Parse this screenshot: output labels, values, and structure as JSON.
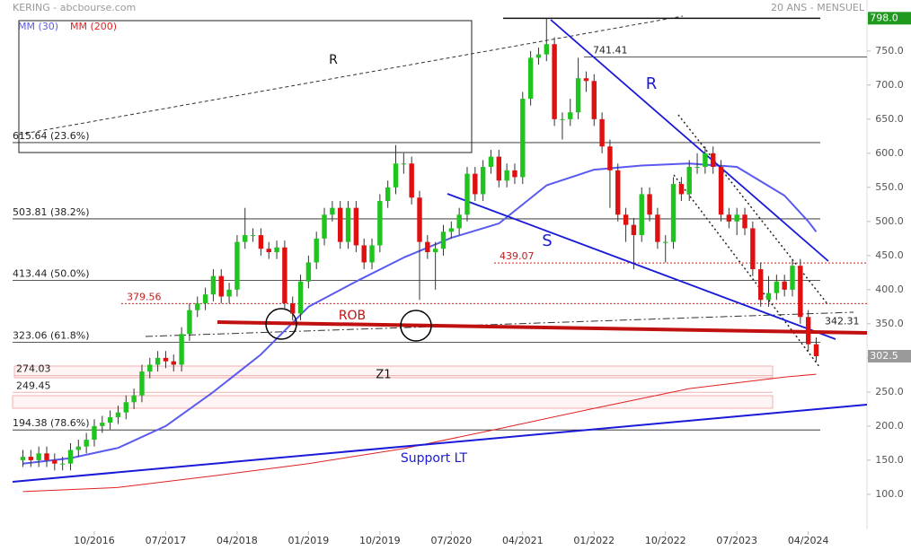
{
  "header": {
    "title": "KERING - abcbourse.com",
    "period": "20 ANS - MENSUEL"
  },
  "chart_data": {
    "type": "candlestick",
    "x": [
      "01/2016",
      "02/2016",
      "03/2016",
      "04/2016",
      "05/2016",
      "06/2016",
      "07/2016",
      "08/2016",
      "09/2016",
      "10/2016",
      "11/2016",
      "12/2016",
      "01/2017",
      "02/2017",
      "03/2017",
      "04/2017",
      "05/2017",
      "06/2017",
      "07/2017",
      "08/2017",
      "09/2017",
      "10/2017",
      "11/2017",
      "12/2017",
      "01/2018",
      "02/2018",
      "03/2018",
      "04/2018",
      "05/2018",
      "06/2018",
      "07/2018",
      "08/2018",
      "09/2018",
      "10/2018",
      "11/2018",
      "12/2018",
      "01/2019",
      "02/2019",
      "03/2019",
      "04/2019",
      "05/2019",
      "06/2019",
      "07/2019",
      "08/2019",
      "09/2019",
      "10/2019",
      "11/2019",
      "12/2019",
      "01/2020",
      "02/2020",
      "03/2020",
      "04/2020",
      "05/2020",
      "06/2020",
      "07/2020",
      "08/2020",
      "09/2020",
      "10/2020",
      "11/2020",
      "12/2020",
      "01/2021",
      "02/2021",
      "03/2021",
      "04/2021",
      "05/2021",
      "06/2021",
      "07/2021",
      "08/2021",
      "09/2021",
      "10/2021",
      "11/2021",
      "12/2021",
      "01/2022",
      "02/2022",
      "03/2022",
      "04/2022",
      "05/2022",
      "06/2022",
      "07/2022",
      "08/2022",
      "09/2022",
      "10/2022",
      "11/2022",
      "12/2022",
      "01/2023",
      "02/2023",
      "03/2023",
      "04/2023",
      "05/2023",
      "06/2023",
      "07/2023",
      "08/2023",
      "09/2023",
      "10/2023",
      "11/2023",
      "12/2023",
      "01/2024",
      "02/2024",
      "03/2024",
      "04/2024",
      "05/2024"
    ],
    "open": [
      150,
      155,
      150,
      160,
      150,
      145,
      145,
      165,
      170,
      180,
      200,
      205,
      213,
      220,
      235,
      245,
      280,
      290,
      300,
      295,
      290,
      335,
      370,
      380,
      393,
      420,
      390,
      400,
      470,
      480,
      480,
      460,
      455,
      462,
      380,
      365,
      412,
      440,
      475,
      510,
      520,
      470,
      520,
      465,
      440,
      465,
      530,
      550,
      585,
      585,
      535,
      470,
      455,
      460,
      485,
      490,
      510,
      570,
      540,
      580,
      595,
      560,
      575,
      565,
      680,
      740,
      745,
      760,
      650,
      650,
      660,
      710,
      706,
      650,
      610,
      575,
      510,
      495,
      480,
      540,
      510,
      470,
      470,
      555,
      540,
      580,
      580,
      600,
      580,
      510,
      500,
      510,
      490,
      430,
      385,
      395,
      412,
      400,
      435,
      360,
      320
    ],
    "high": [
      165,
      165,
      170,
      170,
      160,
      155,
      175,
      180,
      190,
      210,
      215,
      223,
      230,
      245,
      255,
      290,
      300,
      310,
      310,
      305,
      345,
      380,
      390,
      403,
      430,
      430,
      410,
      480,
      520,
      490,
      490,
      470,
      472,
      472,
      390,
      422,
      450,
      485,
      520,
      530,
      530,
      530,
      530,
      475,
      475,
      540,
      560,
      612,
      600,
      595,
      545,
      480,
      470,
      495,
      500,
      520,
      580,
      580,
      590,
      605,
      605,
      585,
      585,
      690,
      750,
      755,
      798,
      770,
      660,
      680,
      740,
      720,
      716,
      660,
      620,
      585,
      520,
      505,
      550,
      550,
      520,
      480,
      565,
      565,
      590,
      600,
      610,
      610,
      590,
      520,
      520,
      520,
      500,
      440,
      420,
      422,
      422,
      445,
      445,
      370,
      330
    ],
    "low": [
      140,
      140,
      140,
      140,
      135,
      135,
      135,
      155,
      160,
      170,
      190,
      195,
      203,
      210,
      225,
      235,
      270,
      280,
      285,
      280,
      280,
      325,
      360,
      370,
      383,
      380,
      380,
      390,
      460,
      470,
      450,
      445,
      445,
      370,
      355,
      355,
      402,
      430,
      465,
      500,
      460,
      460,
      455,
      430,
      430,
      455,
      520,
      540,
      570,
      525,
      385,
      445,
      400,
      450,
      475,
      480,
      500,
      530,
      530,
      570,
      550,
      550,
      555,
      555,
      670,
      730,
      735,
      640,
      620,
      640,
      650,
      690,
      640,
      600,
      520,
      500,
      470,
      430,
      470,
      500,
      460,
      440,
      460,
      530,
      530,
      570,
      570,
      570,
      500,
      490,
      480,
      480,
      420,
      375,
      375,
      385,
      390,
      390,
      350,
      310,
      295
    ],
    "close": [
      155,
      150,
      160,
      150,
      145,
      145,
      165,
      170,
      180,
      200,
      205,
      213,
      220,
      235,
      245,
      280,
      290,
      300,
      295,
      290,
      335,
      370,
      380,
      393,
      420,
      390,
      400,
      470,
      480,
      480,
      460,
      455,
      462,
      380,
      365,
      412,
      440,
      475,
      510,
      520,
      470,
      520,
      465,
      440,
      465,
      530,
      550,
      585,
      585,
      535,
      470,
      455,
      460,
      485,
      490,
      510,
      570,
      540,
      580,
      595,
      560,
      575,
      565,
      680,
      740,
      745,
      760,
      650,
      650,
      660,
      710,
      706,
      650,
      610,
      575,
      510,
      495,
      480,
      540,
      510,
      470,
      470,
      555,
      540,
      580,
      580,
      600,
      580,
      510,
      500,
      510,
      490,
      430,
      385,
      395,
      412,
      400,
      435,
      360,
      320,
      302.5
    ],
    "up_color": "#1fc41f",
    "down_color": "#e01010",
    "ylim": [
      42,
      805
    ],
    "yticks": [
      {
        "value": 100,
        "label": "100.0"
      },
      {
        "value": 150,
        "label": "150.0"
      },
      {
        "value": 200,
        "label": "200.0"
      },
      {
        "value": 250,
        "label": "250.0"
      },
      {
        "value": 300,
        "label": "300.0"
      },
      {
        "value": 350,
        "label": "350.0"
      },
      {
        "value": 400,
        "label": "400.0"
      },
      {
        "value": 450,
        "label": "450.0"
      },
      {
        "value": 500,
        "label": "500.0"
      },
      {
        "value": 550,
        "label": "550.0"
      },
      {
        "value": 600,
        "label": "600.0"
      },
      {
        "value": 650,
        "label": "650.0"
      },
      {
        "value": 700,
        "label": "700.0"
      },
      {
        "value": 750,
        "label": "750.0"
      }
    ],
    "xticks": [
      "10/2016",
      "07/2017",
      "04/2018",
      "01/2019",
      "10/2019",
      "07/2020",
      "04/2021",
      "01/2022",
      "10/2022",
      "07/2023",
      "04/2024"
    ],
    "moving_averages": [
      {
        "name": "MM (30)",
        "color": "#5a5af0",
        "x": [
          "01/2016",
          "07/2016",
          "01/2017",
          "07/2017",
          "01/2018",
          "07/2018",
          "01/2019",
          "07/2019",
          "01/2020",
          "07/2020",
          "01/2021",
          "07/2021",
          "01/2022",
          "07/2022",
          "01/2023",
          "07/2023",
          "01/2024",
          "04/2024",
          "05/2024"
        ],
        "values": [
          145,
          153,
          168,
          200,
          250,
          305,
          375,
          412,
          447,
          476,
          497,
          553,
          576,
          582,
          585,
          580,
          538,
          500,
          485
        ]
      },
      {
        "name": "MM (200)",
        "color": "#e02020",
        "x": [
          "01/2016",
          "01/2017",
          "01/2018",
          "01/2019",
          "01/2020",
          "01/2021",
          "01/2022",
          "01/2023",
          "01/2024",
          "05/2024"
        ],
        "values": [
          104,
          110,
          127,
          145,
          167,
          196,
          226,
          255,
          272,
          276
        ]
      }
    ],
    "levels": [
      {
        "value": 615.64,
        "label": "615.64  (23.6%)",
        "style": "solid"
      },
      {
        "value": 503.81,
        "label": "503.81  (38.2%)",
        "style": "solid"
      },
      {
        "value": 413.44,
        "label": "413.44  (50.0%)",
        "style": "solid"
      },
      {
        "value": 323.06,
        "label": "323.06  (61.8%)",
        "style": "solid"
      },
      {
        "value": 194.38,
        "label": "194.38  (78.6%)",
        "style": "solid"
      },
      {
        "value": 741.41,
        "label": "741.41",
        "style": "solid"
      },
      {
        "value": 439.07,
        "label": "439.07",
        "style": "dotted"
      },
      {
        "value": 379.56,
        "label": "379.56",
        "style": "dotted"
      },
      {
        "value": 342.31,
        "label": "342.31",
        "style": "none"
      },
      {
        "value": 274.03,
        "label": "274.03",
        "style": "zone"
      },
      {
        "value": 249.45,
        "label": "249.45",
        "style": "zone"
      }
    ],
    "price_markers": [
      {
        "value": 798,
        "label": "798.0",
        "color": "#1f9a1f"
      },
      {
        "value": 302.5,
        "color": "#9a9a9a"
      }
    ],
    "annotations": [
      "R",
      "R",
      "S",
      "ROB",
      "Z1",
      "Support LT"
    ]
  }
}
